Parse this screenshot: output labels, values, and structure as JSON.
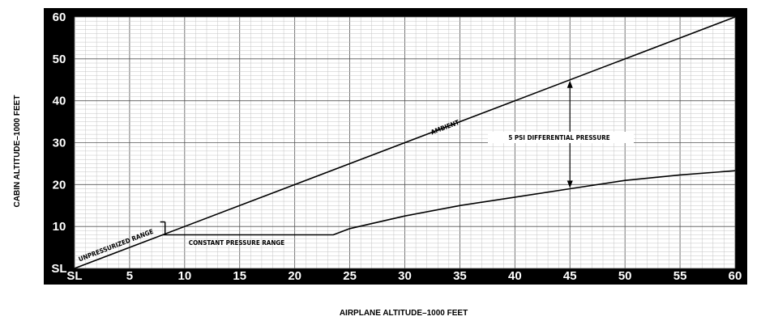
{
  "chart_data": {
    "type": "line",
    "xlabel": "AIRPLANE ALTITUDE–1000 FEET",
    "ylabel": "CABIN ALTITUDE–1000 FEET",
    "xlim": [
      0,
      60
    ],
    "ylim": [
      0,
      60
    ],
    "x_ticks": [
      {
        "value": 0,
        "label": "SL"
      },
      {
        "value": 5,
        "label": "5"
      },
      {
        "value": 10,
        "label": "10"
      },
      {
        "value": 15,
        "label": "15"
      },
      {
        "value": 20,
        "label": "20"
      },
      {
        "value": 25,
        "label": "25"
      },
      {
        "value": 30,
        "label": "30"
      },
      {
        "value": 35,
        "label": "35"
      },
      {
        "value": 40,
        "label": "40"
      },
      {
        "value": 45,
        "label": "45"
      },
      {
        "value": 50,
        "label": "50"
      },
      {
        "value": 55,
        "label": "55"
      },
      {
        "value": 60,
        "label": "60"
      }
    ],
    "y_ticks": [
      {
        "value": 0,
        "label": "SL"
      },
      {
        "value": 10,
        "label": "10"
      },
      {
        "value": 20,
        "label": "20"
      },
      {
        "value": 30,
        "label": "30"
      },
      {
        "value": 40,
        "label": "40"
      },
      {
        "value": 50,
        "label": "50"
      },
      {
        "value": 60,
        "label": "60"
      }
    ],
    "grid": true,
    "series": [
      {
        "name": "AMBIENT",
        "x": [
          0,
          60
        ],
        "y": [
          0,
          60
        ]
      },
      {
        "name": "",
        "x": [
          8,
          23.5,
          25,
          30,
          35,
          40,
          45,
          50,
          55,
          60
        ],
        "y": [
          8,
          8,
          9.5,
          12.5,
          15,
          17,
          19,
          21,
          22.3,
          23.3
        ]
      }
    ],
    "annotations": {
      "ambient": "AMBIENT",
      "unpressurized": "UNPRESSURIZED RANGE",
      "constant": "CONSTANT PRESSURE RANGE",
      "differential": "5 PSI DIFFERENTIAL PRESSURE"
    }
  }
}
